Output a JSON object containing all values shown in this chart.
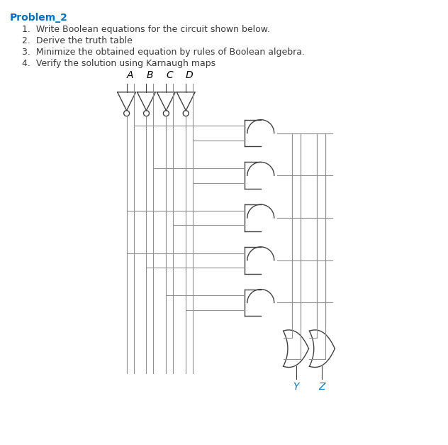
{
  "title_text": "Problem_2",
  "title_color": "#0070C0",
  "body_color": "#3a3a3a",
  "items": [
    "1.  Write Boolean equations for the circuit shown below.",
    "2.  Derive the truth table",
    "3.  Minimize the obtained equation by rules of Boolean algebra.",
    "4.  Verify the solution using Karnaugh maps"
  ],
  "input_labels": [
    "A",
    "B",
    "C",
    "D"
  ],
  "output_labels": [
    "Y",
    "Z"
  ],
  "output_color": "#0070C0",
  "line_color": "#909090",
  "gate_color": "#404040",
  "bg_color": "#ffffff"
}
